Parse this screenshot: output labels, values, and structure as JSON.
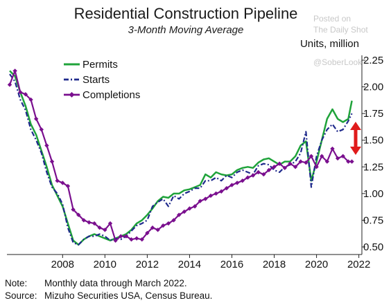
{
  "title": "Residential Construction Pipeline",
  "subtitle": "3-Month Moving Average",
  "watermark": [
    "Posted on",
    "The Daily Shot",
    "@SoberLook"
  ],
  "notes": [
    {
      "label": "Note:",
      "text": "Monthly data through March 2022."
    },
    {
      "label": "Source:",
      "text": "Mizuho Securities USA, Census Bureau."
    }
  ],
  "colors": {
    "permits": "#1fa33a",
    "starts": "#1f2a8c",
    "completions": "#7a0f8e",
    "arrow": "#e01b1b"
  },
  "chart_data": {
    "type": "line",
    "title": "Residential Construction Pipeline",
    "subtitle": "3-Month Moving Average",
    "ylabel": "Units, million",
    "xlabel": "",
    "ylim": [
      0.5,
      2.25
    ],
    "xlim": [
      2006.0,
      2022.25
    ],
    "y_axis_side": "right",
    "yticks": [
      "0.50",
      "0.75",
      "1.00",
      "1.25",
      "1.50",
      "1.75",
      "2.00",
      "2.25"
    ],
    "xticks": [
      "2008",
      "2010",
      "2012",
      "2014",
      "2016",
      "2018",
      "2020",
      "2022"
    ],
    "grid": false,
    "legend": "top-left",
    "annotation": "double-headed red arrow between Starts and Completions at right edge",
    "series": [
      {
        "name": "Permits",
        "x": [
          2006.0,
          2006.25,
          2006.5,
          2006.75,
          2007.0,
          2007.25,
          2007.5,
          2007.75,
          2008.0,
          2008.25,
          2008.5,
          2008.75,
          2009.0,
          2009.25,
          2009.5,
          2009.75,
          2010.0,
          2010.25,
          2010.5,
          2010.75,
          2011.0,
          2011.25,
          2011.5,
          2011.75,
          2012.0,
          2012.25,
          2012.5,
          2012.75,
          2013.0,
          2013.25,
          2013.5,
          2013.75,
          2014.0,
          2014.25,
          2014.5,
          2014.75,
          2015.0,
          2015.25,
          2015.5,
          2015.75,
          2016.0,
          2016.25,
          2016.5,
          2016.75,
          2017.0,
          2017.25,
          2017.5,
          2017.75,
          2018.0,
          2018.25,
          2018.5,
          2018.75,
          2019.0,
          2019.25,
          2019.5,
          2019.75,
          2020.0,
          2020.25,
          2020.5,
          2020.75,
          2021.0,
          2021.25,
          2021.5,
          2021.75,
          2022.0,
          2022.17
        ],
        "values": [
          2.15,
          2.1,
          1.95,
          1.82,
          1.65,
          1.55,
          1.4,
          1.25,
          1.08,
          0.98,
          0.88,
          0.72,
          0.56,
          0.52,
          0.57,
          0.6,
          0.62,
          0.6,
          0.58,
          0.56,
          0.58,
          0.6,
          0.62,
          0.66,
          0.72,
          0.75,
          0.8,
          0.86,
          0.93,
          0.97,
          0.96,
          1.0,
          1.0,
          1.03,
          1.04,
          1.06,
          1.08,
          1.18,
          1.15,
          1.2,
          1.18,
          1.17,
          1.18,
          1.22,
          1.24,
          1.25,
          1.24,
          1.29,
          1.32,
          1.33,
          1.3,
          1.27,
          1.3,
          1.3,
          1.35,
          1.45,
          1.49,
          1.12,
          1.3,
          1.5,
          1.7,
          1.79,
          1.7,
          1.67,
          1.7,
          1.87
        ]
      },
      {
        "name": "Starts",
        "x": [
          2006.0,
          2006.25,
          2006.5,
          2006.75,
          2007.0,
          2007.25,
          2007.5,
          2007.75,
          2008.0,
          2008.25,
          2008.5,
          2008.75,
          2009.0,
          2009.25,
          2009.5,
          2009.75,
          2010.0,
          2010.25,
          2010.5,
          2010.75,
          2011.0,
          2011.25,
          2011.5,
          2011.75,
          2012.0,
          2012.25,
          2012.5,
          2012.75,
          2013.0,
          2013.25,
          2013.5,
          2013.75,
          2014.0,
          2014.25,
          2014.5,
          2014.75,
          2015.0,
          2015.25,
          2015.5,
          2015.75,
          2016.0,
          2016.25,
          2016.5,
          2016.75,
          2017.0,
          2017.25,
          2017.5,
          2017.75,
          2018.0,
          2018.25,
          2018.5,
          2018.75,
          2019.0,
          2019.25,
          2019.5,
          2019.75,
          2020.0,
          2020.25,
          2020.5,
          2020.75,
          2021.0,
          2021.25,
          2021.5,
          2021.75,
          2022.0,
          2022.17
        ],
        "values": [
          2.12,
          2.05,
          1.88,
          1.78,
          1.6,
          1.5,
          1.38,
          1.2,
          1.06,
          1.0,
          0.9,
          0.68,
          0.54,
          0.52,
          0.57,
          0.6,
          0.6,
          0.62,
          0.6,
          0.56,
          0.58,
          0.57,
          0.6,
          0.65,
          0.7,
          0.72,
          0.75,
          0.88,
          0.92,
          0.95,
          0.88,
          0.98,
          0.95,
          1.0,
          1.02,
          1.05,
          1.05,
          1.12,
          1.12,
          1.15,
          1.12,
          1.17,
          1.15,
          1.2,
          1.22,
          1.2,
          1.18,
          1.26,
          1.28,
          1.27,
          1.22,
          1.2,
          1.25,
          1.27,
          1.3,
          1.38,
          1.58,
          1.06,
          1.35,
          1.5,
          1.6,
          1.65,
          1.58,
          1.6,
          1.68,
          1.75
        ]
      },
      {
        "name": "Completions",
        "x": [
          2006.0,
          2006.25,
          2006.5,
          2006.75,
          2007.0,
          2007.25,
          2007.5,
          2007.75,
          2008.0,
          2008.25,
          2008.5,
          2008.75,
          2009.0,
          2009.25,
          2009.5,
          2009.75,
          2010.0,
          2010.25,
          2010.5,
          2010.75,
          2011.0,
          2011.25,
          2011.5,
          2011.75,
          2012.0,
          2012.25,
          2012.5,
          2012.75,
          2013.0,
          2013.25,
          2013.5,
          2013.75,
          2014.0,
          2014.25,
          2014.5,
          2014.75,
          2015.0,
          2015.25,
          2015.5,
          2015.75,
          2016.0,
          2016.25,
          2016.5,
          2016.75,
          2017.0,
          2017.25,
          2017.5,
          2017.75,
          2018.0,
          2018.25,
          2018.5,
          2018.75,
          2019.0,
          2019.25,
          2019.5,
          2019.75,
          2020.0,
          2020.25,
          2020.5,
          2020.75,
          2021.0,
          2021.25,
          2021.5,
          2021.75,
          2022.0,
          2022.17
        ],
        "values": [
          2.02,
          2.15,
          1.95,
          1.93,
          1.88,
          1.7,
          1.6,
          1.45,
          1.3,
          1.12,
          1.1,
          1.07,
          0.85,
          0.8,
          0.75,
          0.73,
          0.72,
          0.68,
          0.66,
          0.72,
          0.56,
          0.6,
          0.6,
          0.57,
          0.58,
          0.57,
          0.63,
          0.68,
          0.66,
          0.7,
          0.72,
          0.75,
          0.8,
          0.83,
          0.86,
          0.88,
          0.93,
          0.95,
          0.98,
          1.0,
          1.02,
          1.05,
          1.08,
          1.1,
          1.12,
          1.15,
          1.17,
          1.2,
          1.18,
          1.22,
          1.25,
          1.28,
          1.24,
          1.28,
          1.25,
          1.3,
          1.29,
          1.35,
          1.25,
          1.35,
          1.3,
          1.42,
          1.33,
          1.35,
          1.3,
          1.3
        ]
      }
    ]
  }
}
